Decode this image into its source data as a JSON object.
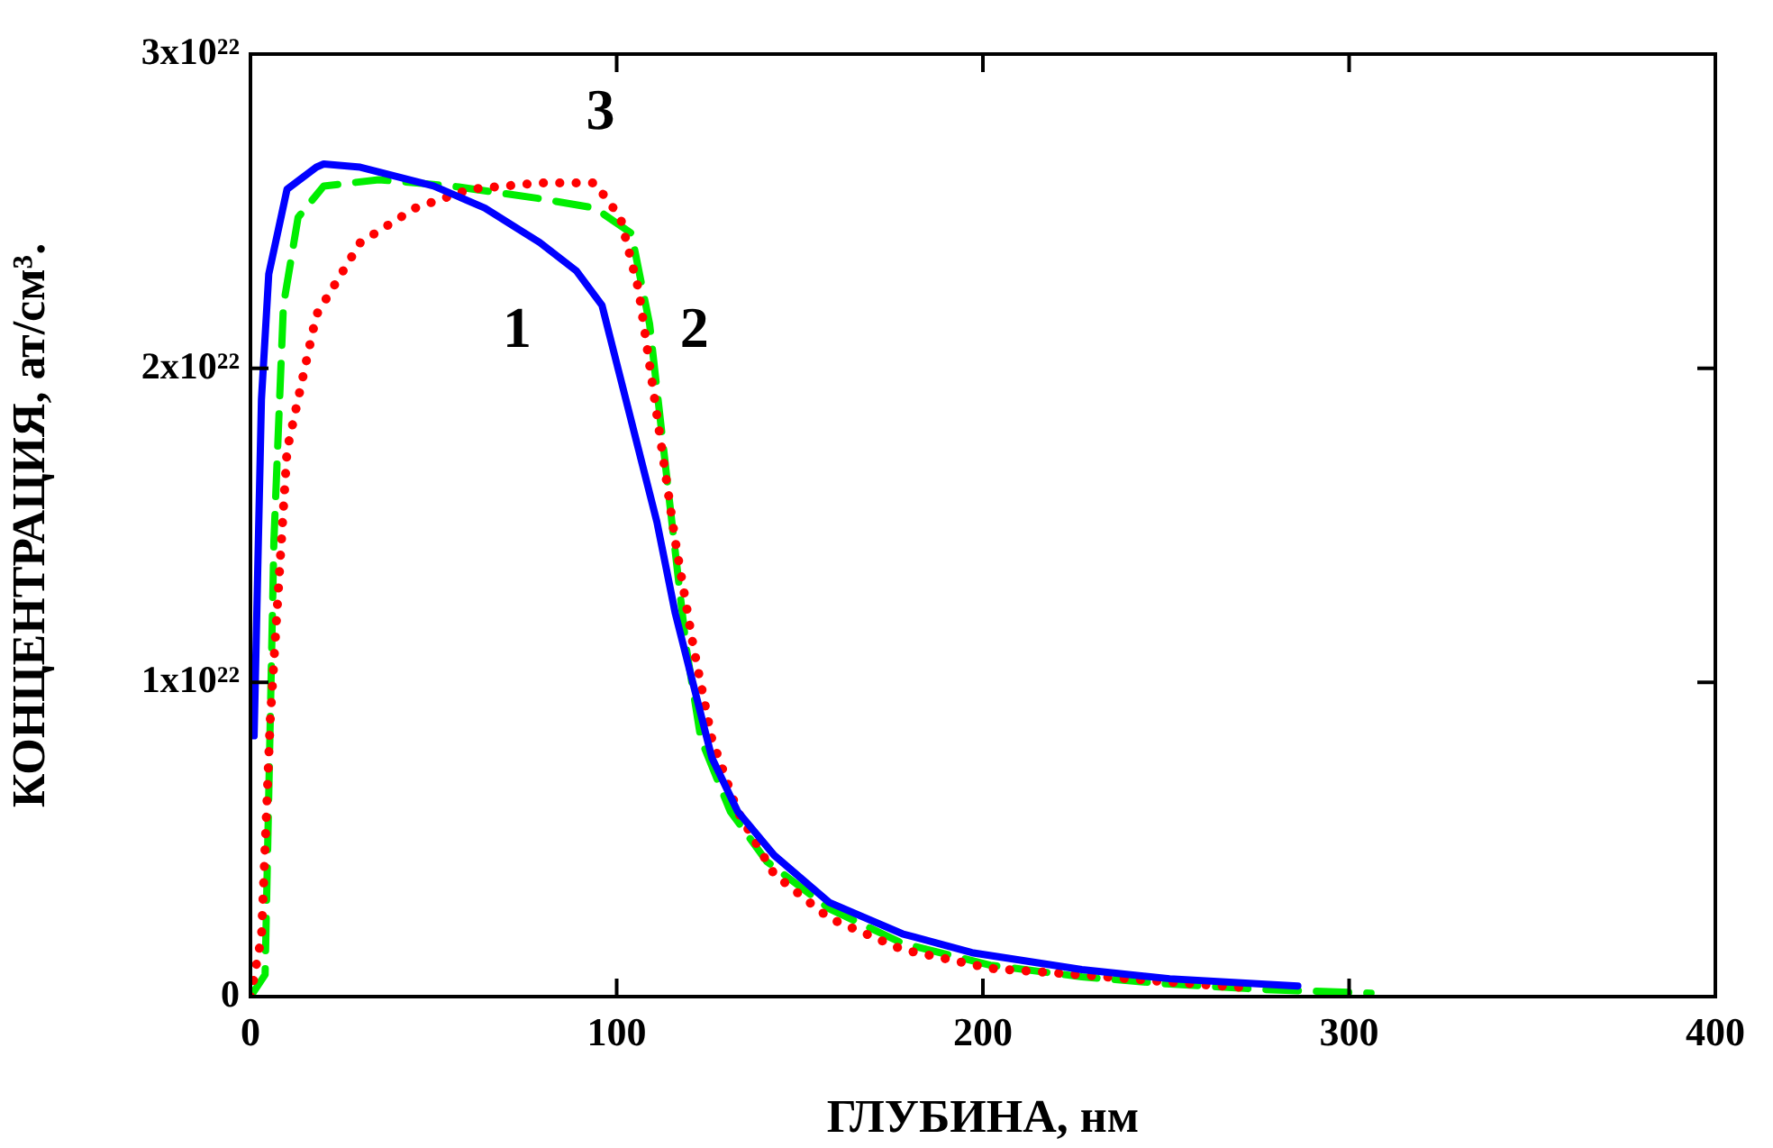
{
  "chart_data": {
    "type": "line",
    "xlabel": "ГЛУБИНА, нм",
    "ylabel": "КОНЦЕНТРАЦИЯ, ат/см³.",
    "xlim": [
      0,
      400
    ],
    "xticks": [
      0,
      100,
      200,
      300,
      400
    ],
    "ylim": [
      0,
      3e+22
    ],
    "yticks": [
      0,
      {
        "value": 1e+22,
        "label": "1x10²²"
      },
      {
        "value": 2e+22,
        "label": "2x10²²"
      },
      {
        "value": 3e+22,
        "label": "3x10²²"
      }
    ],
    "grid": false,
    "legend": false,
    "marker": "none",
    "series": [
      {
        "color": "#0000ff",
        "line_style": "solid",
        "x": [
          1,
          3,
          5,
          10,
          18,
          20,
          30,
          50,
          64,
          79,
          89,
          96,
          101,
          106,
          111,
          116,
          121,
          126,
          133,
          143,
          158,
          178,
          197,
          227,
          251,
          276,
          286
        ],
        "values": [
          8.3e+21,
          1.9e+22,
          2.3e+22,
          2.57e+22,
          2.64e+22,
          2.65e+22,
          2.64e+22,
          2.58e+22,
          2.51e+22,
          2.4e+22,
          2.31e+22,
          2.2e+22,
          1.97e+22,
          1.74e+22,
          1.51e+22,
          1.22e+22,
          9.9e+21,
          7.6e+21,
          5.9e+21,
          4.5e+21,
          3e+21,
          2e+21,
          1.4e+21,
          8.6e+20,
          5.7e+20,
          4e+20,
          3.4e+20
        ]
      },
      {
        "color": "#ff0000",
        "line_style": "dotted",
        "x": [
          0,
          3,
          5.4,
          10,
          18,
          30,
          45,
          60,
          79,
          94,
          101,
          106,
          111,
          116,
          121,
          126,
          133,
          143,
          158,
          178,
          202,
          227,
          251,
          271
        ],
        "values": [
          0,
          1.9e+21,
          8.8e+21,
          1.74e+22,
          2.17e+22,
          2.4e+22,
          2.51e+22,
          2.57e+22,
          2.59e+22,
          2.59e+22,
          2.48e+22,
          2.25e+22,
          1.85e+22,
          1.45e+22,
          1.11e+22,
          8.2e+21,
          5.9e+21,
          3.9e+21,
          2.5e+21,
          1.5e+21,
          9e+20,
          6.9e+20,
          4.6e+20,
          2.9e+20
        ]
      },
      {
        "color": "#00ee00",
        "line_style": "dashed",
        "x": [
          0,
          4,
          6.4,
          9,
          13,
          20,
          35,
          55,
          79,
          94,
          104,
          109,
          114,
          119,
          123,
          131,
          141,
          158,
          178,
          202,
          227,
          251,
          276,
          306
        ],
        "values": [
          0,
          7e+20,
          1.45e+22,
          2.2e+22,
          2.48e+22,
          2.58e+22,
          2.6e+22,
          2.58e+22,
          2.54e+22,
          2.51e+22,
          2.43e+22,
          2.14e+22,
          1.62e+22,
          1.11e+22,
          8.2e+21,
          5.9e+21,
          4.3e+21,
          2.8e+21,
          1.7e+21,
          1e+21,
          6.3e+20,
          4e+20,
          2.3e+20,
          1.1e+20
        ]
      }
    ],
    "annotations": [
      "1",
      "2",
      "3"
    ]
  }
}
